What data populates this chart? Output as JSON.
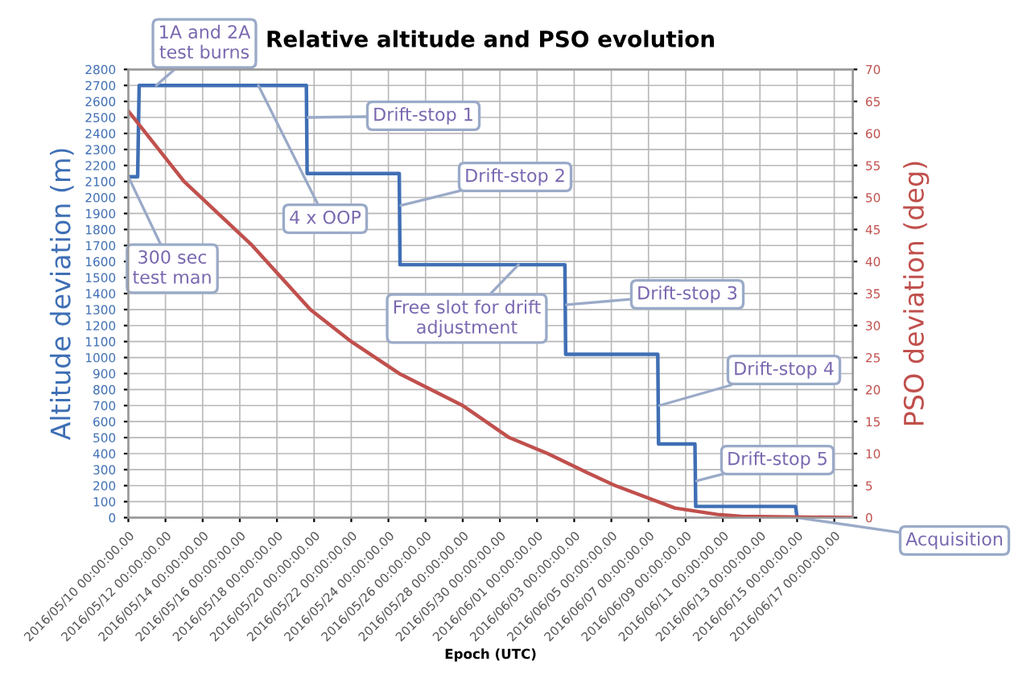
{
  "chart_data": {
    "type": "line",
    "title": "Relative altitude and PSO evolution",
    "xlabel": "Epoch (UTC)",
    "ylabel": "Altitude deviation (m)",
    "y2label": "PSO deviation (deg)",
    "series": [
      {
        "color": "#3f6fb5",
        "x": [
          "2016-05-10T00:00",
          "2016-05-10T12:00",
          "2016-05-10T14:00",
          "2016-05-19T14:00",
          "2016-05-19T15:00",
          "2016-05-24T14:00",
          "2016-05-24T15:00",
          "2016-06-02T12:00",
          "2016-06-02T13:00",
          "2016-06-07T12:00",
          "2016-06-07T13:00",
          "2016-06-09T12:00",
          "2016-06-09T13:00",
          "2016-06-14T22:00",
          "2016-06-15T00:00"
        ],
        "values": [
          2130,
          2130,
          2700,
          2700,
          2150,
          2150,
          1580,
          1580,
          1020,
          1020,
          460,
          460,
          70,
          70,
          0
        ]
      },
      {
        "color": "#c0504d",
        "axis": "y2",
        "x": [
          "2016-05-10T00:00",
          "2016-05-13T00:00",
          "2016-05-16T16:00",
          "2016-05-19T19:00",
          "2016-05-22T00:00",
          "2016-05-24T14:00",
          "2016-05-28T00:00",
          "2016-05-30T12:00",
          "2016-06-01T14:00",
          "2016-06-03T17:00",
          "2016-06-05T05:00",
          "2016-06-08T10:00",
          "2016-06-10T17:00",
          "2016-06-12T00:00",
          "2016-06-18T00:00"
        ],
        "values": [
          63.5,
          52.5,
          42.5,
          32.5,
          27.5,
          22.5,
          17.5,
          12.5,
          10,
          7,
          5,
          1.5,
          0.5,
          0.2,
          0
        ]
      }
    ],
    "xlim": [
      "2016-05-10",
      "2016-06-18"
    ],
    "xticks": [
      {
        "value": "2016-05-10",
        "label": "2016/05/10 00:00:00.00"
      },
      {
        "value": "2016-05-12",
        "label": "2016/05/12 00:00:00.00"
      },
      {
        "value": "2016-05-14",
        "label": "2016/05/14 00:00:00.00"
      },
      {
        "value": "2016-05-16",
        "label": "2016/05/16 00:00:00.00"
      },
      {
        "value": "2016-05-18",
        "label": "2016/05/18 00:00:00.00"
      },
      {
        "value": "2016-05-20",
        "label": "2016/05/20 00:00:00.00"
      },
      {
        "value": "2016-05-22",
        "label": "2016/05/22 00:00:00.00"
      },
      {
        "value": "2016-05-24",
        "label": "2016/05/24 00:00:00.00"
      },
      {
        "value": "2016-05-26",
        "label": "2016/05/26 00:00:00.00"
      },
      {
        "value": "2016-05-28",
        "label": "2016/05/28 00:00:00.00"
      },
      {
        "value": "2016-05-30",
        "label": "2016/05/30 00:00:00.00"
      },
      {
        "value": "2016-06-01",
        "label": "2016/06/01 00:00:00.00"
      },
      {
        "value": "2016-06-03",
        "label": "2016/06/03 00:00:00.00"
      },
      {
        "value": "2016-06-05",
        "label": "2016/06/05 00:00:00.00"
      },
      {
        "value": "2016-06-07",
        "label": "2016/06/07 00:00:00.00"
      },
      {
        "value": "2016-06-09",
        "label": "2016/06/09 00:00:00.00"
      },
      {
        "value": "2016-06-11",
        "label": "2016/06/11 00:00:00.00"
      },
      {
        "value": "2016-06-13",
        "label": "2016/06/13 00:00:00.00"
      },
      {
        "value": "2016-06-15",
        "label": "2016/06/15 00:00:00.00"
      },
      {
        "value": "2016-06-17",
        "label": "2016/06/17 00:00:00.00"
      }
    ],
    "ylim": [
      0,
      2800
    ],
    "yticks": [
      0,
      100,
      200,
      300,
      400,
      500,
      600,
      700,
      800,
      900,
      1000,
      1100,
      1200,
      1300,
      1400,
      1500,
      1600,
      1700,
      1800,
      1900,
      2000,
      2100,
      2200,
      2300,
      2400,
      2500,
      2600,
      2700,
      2800
    ],
    "y2lim": [
      0,
      70
    ],
    "y2ticks": [
      0,
      5,
      10,
      15,
      20,
      25,
      30,
      35,
      40,
      45,
      50,
      55,
      60,
      65,
      70
    ],
    "grid": true,
    "marker": "none",
    "line_style": "solid",
    "annotations": [
      {
        "text": "1A and 2A\ntest burns",
        "x": "2016-05-11T12:00",
        "y": 2700
      },
      {
        "text": "300 sec\ntest man",
        "x": "2016-05-10T00:00",
        "y": 2130
      },
      {
        "text": "4 x OOP",
        "x": "2016-05-17T00:00",
        "y": 2700
      },
      {
        "text": "Drift-stop 1",
        "x": "2016-05-19T16:00",
        "y": 2500
      },
      {
        "text": "Drift-stop 2",
        "x": "2016-05-24T16:00",
        "y": 1950
      },
      {
        "text": "Free slot for drift\nadjustment",
        "x": "2016-05-31T00:00",
        "y": 1580
      },
      {
        "text": "Drift-stop 3",
        "x": "2016-06-02T14:00",
        "y": 1330
      },
      {
        "text": "Drift-stop 4",
        "x": "2016-06-07T14:00",
        "y": 700
      },
      {
        "text": "Drift-stop 5",
        "x": "2016-06-09T14:00",
        "y": 230
      },
      {
        "text": "Acquisition",
        "x": "2016-06-15T00:00",
        "y": 0
      }
    ]
  }
}
